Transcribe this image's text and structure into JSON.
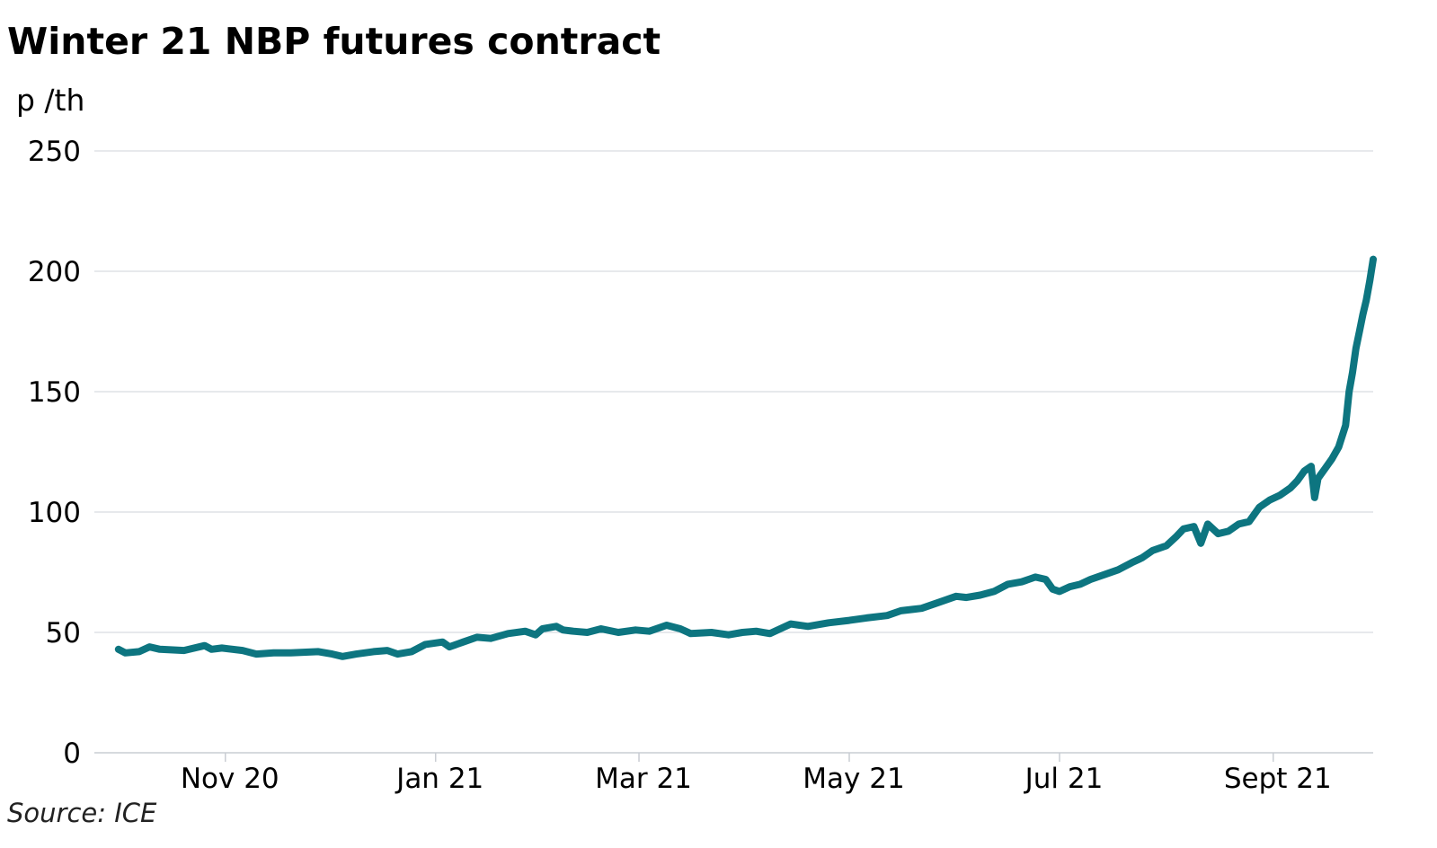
{
  "chart_data": {
    "type": "line",
    "title": "Winter 21 NBP futures contract",
    "ylabel": "p /th",
    "source": "Source: ICE",
    "ylim": [
      0,
      250
    ],
    "yticks": [
      0,
      50,
      100,
      150,
      200,
      250
    ],
    "x_ticks": [
      {
        "date": "2020-11-01",
        "label": "Nov 20"
      },
      {
        "date": "2021-01-01",
        "label": "Jan 21"
      },
      {
        "date": "2021-03-01",
        "label": "Mar 21"
      },
      {
        "date": "2021-05-01",
        "label": "May 21"
      },
      {
        "date": "2021-07-01",
        "label": "Jul 21"
      },
      {
        "date": "2021-09-01",
        "label": "Sept 21"
      }
    ],
    "xlim": [
      "2020-09-24",
      "2021-09-30"
    ],
    "grid": "horizontal",
    "line_color": "#0d7580",
    "series": [
      {
        "name": "",
        "points": [
          [
            "2020-10-01",
            43
          ],
          [
            "2020-10-03",
            41.5
          ],
          [
            "2020-10-07",
            42
          ],
          [
            "2020-10-10",
            44
          ],
          [
            "2020-10-13",
            43
          ],
          [
            "2020-10-20",
            42.5
          ],
          [
            "2020-10-26",
            44.5
          ],
          [
            "2020-10-28",
            43
          ],
          [
            "2020-10-31",
            43.5
          ],
          [
            "2020-11-06",
            42.5
          ],
          [
            "2020-11-10",
            41
          ],
          [
            "2020-11-15",
            41.5
          ],
          [
            "2020-11-20",
            41.5
          ],
          [
            "2020-11-28",
            42
          ],
          [
            "2020-12-02",
            41
          ],
          [
            "2020-12-05",
            40
          ],
          [
            "2020-12-09",
            41
          ],
          [
            "2020-12-14",
            42
          ],
          [
            "2020-12-18",
            42.5
          ],
          [
            "2020-12-21",
            41
          ],
          [
            "2020-12-25",
            42
          ],
          [
            "2020-12-29",
            45
          ],
          [
            "2021-01-03",
            46
          ],
          [
            "2021-01-05",
            44
          ],
          [
            "2021-01-09",
            46
          ],
          [
            "2021-01-13",
            48
          ],
          [
            "2021-01-17",
            47.5
          ],
          [
            "2021-01-22",
            49.5
          ],
          [
            "2021-01-27",
            50.5
          ],
          [
            "2021-01-30",
            49
          ],
          [
            "2021-02-01",
            51.5
          ],
          [
            "2021-02-05",
            52.5
          ],
          [
            "2021-02-07",
            51
          ],
          [
            "2021-02-10",
            50.5
          ],
          [
            "2021-02-14",
            50
          ],
          [
            "2021-02-18",
            51.5
          ],
          [
            "2021-02-23",
            50
          ],
          [
            "2021-02-28",
            51
          ],
          [
            "2021-03-04",
            50.5
          ],
          [
            "2021-03-09",
            53
          ],
          [
            "2021-03-13",
            51.5
          ],
          [
            "2021-03-16",
            49.5
          ],
          [
            "2021-03-22",
            50
          ],
          [
            "2021-03-27",
            49
          ],
          [
            "2021-03-31",
            50
          ],
          [
            "2021-04-04",
            50.5
          ],
          [
            "2021-04-08",
            49.5
          ],
          [
            "2021-04-14",
            53.5
          ],
          [
            "2021-04-19",
            52.5
          ],
          [
            "2021-04-25",
            54
          ],
          [
            "2021-05-01",
            55
          ],
          [
            "2021-05-06",
            56
          ],
          [
            "2021-05-12",
            57
          ],
          [
            "2021-05-16",
            59
          ],
          [
            "2021-05-22",
            60
          ],
          [
            "2021-05-28",
            63
          ],
          [
            "2021-06-01",
            65
          ],
          [
            "2021-06-04",
            64.5
          ],
          [
            "2021-06-08",
            65.5
          ],
          [
            "2021-06-12",
            67
          ],
          [
            "2021-06-16",
            70
          ],
          [
            "2021-06-20",
            71
          ],
          [
            "2021-06-24",
            73
          ],
          [
            "2021-06-27",
            72
          ],
          [
            "2021-06-29",
            68
          ],
          [
            "2021-07-01",
            67
          ],
          [
            "2021-07-04",
            69
          ],
          [
            "2021-07-07",
            70
          ],
          [
            "2021-07-10",
            72
          ],
          [
            "2021-07-14",
            74
          ],
          [
            "2021-07-18",
            76
          ],
          [
            "2021-07-22",
            79
          ],
          [
            "2021-07-25",
            81
          ],
          [
            "2021-07-28",
            84
          ],
          [
            "2021-08-01",
            86
          ],
          [
            "2021-08-04",
            90
          ],
          [
            "2021-08-06",
            93
          ],
          [
            "2021-08-09",
            94
          ],
          [
            "2021-08-11",
            87
          ],
          [
            "2021-08-13",
            95
          ],
          [
            "2021-08-16",
            91
          ],
          [
            "2021-08-19",
            92
          ],
          [
            "2021-08-22",
            95
          ],
          [
            "2021-08-25",
            96
          ],
          [
            "2021-08-28",
            102
          ],
          [
            "2021-08-31",
            105
          ],
          [
            "2021-09-03",
            107
          ],
          [
            "2021-09-06",
            110
          ],
          [
            "2021-09-08",
            113
          ],
          [
            "2021-09-10",
            117
          ],
          [
            "2021-09-12",
            119
          ],
          [
            "2021-09-13",
            106
          ],
          [
            "2021-09-14",
            114
          ],
          [
            "2021-09-16",
            118
          ],
          [
            "2021-09-18",
            122
          ],
          [
            "2021-09-20",
            127
          ],
          [
            "2021-09-22",
            136
          ],
          [
            "2021-09-23",
            150
          ],
          [
            "2021-09-24",
            158
          ],
          [
            "2021-09-25",
            168
          ],
          [
            "2021-09-26",
            175
          ],
          [
            "2021-09-27",
            182
          ],
          [
            "2021-09-28",
            188
          ],
          [
            "2021-09-29",
            196
          ],
          [
            "2021-09-30",
            205
          ]
        ]
      }
    ]
  }
}
